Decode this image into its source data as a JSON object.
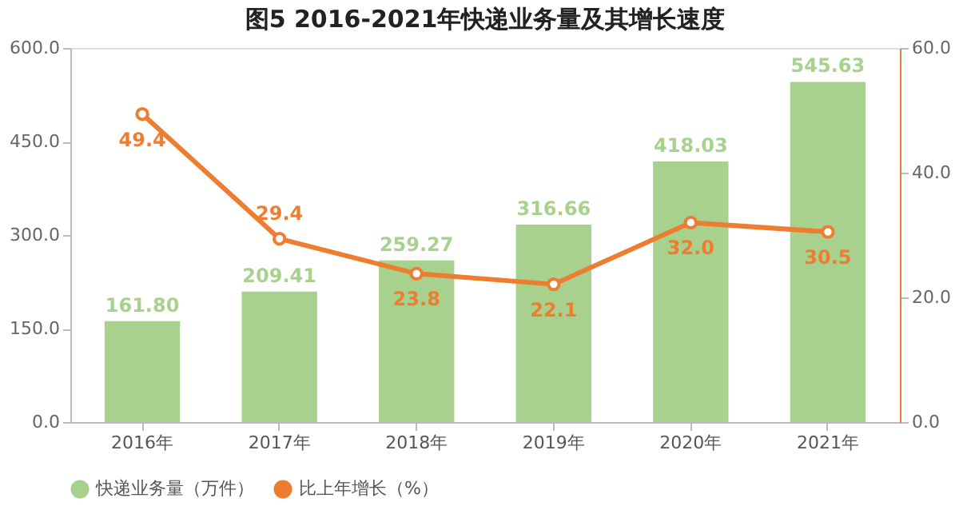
{
  "chart_data": {
    "type": "bar",
    "title": "图5 2016-2021年快递业务量及其增长速度",
    "categories": [
      "2016年",
      "2017年",
      "2018年",
      "2019年",
      "2020年",
      "2021年"
    ],
    "series": [
      {
        "name": "快递业务量（万件）",
        "color": "#a9d18e",
        "values": [
          161.8,
          209.41,
          259.27,
          316.66,
          418.03,
          545.63
        ],
        "value_labels": [
          "161.80",
          "209.41",
          "259.27",
          "316.66",
          "418.03",
          "545.63"
        ]
      },
      {
        "name": "比上年增长（%）",
        "type": "line",
        "axis": "y2",
        "color": "#ed7d31",
        "marker": "circle",
        "values": [
          49.4,
          29.4,
          23.8,
          22.1,
          32.0,
          30.5
        ],
        "value_labels": [
          "49.4",
          "29.4",
          "23.8",
          "22.1",
          "32.0",
          "30.5"
        ]
      }
    ],
    "ylim": [
      0,
      600
    ],
    "yticks": [
      {
        "value": 0,
        "label": "0.0"
      },
      {
        "value": 150,
        "label": "150.0"
      },
      {
        "value": 300,
        "label": "300.0"
      },
      {
        "value": 450,
        "label": "450.0"
      },
      {
        "value": 600,
        "label": "600.0"
      }
    ],
    "y2lim": [
      0,
      60
    ],
    "y2ticks": [
      {
        "value": 0,
        "label": "0.0"
      },
      {
        "value": 20,
        "label": "20.0"
      },
      {
        "value": 40,
        "label": "40.0"
      },
      {
        "value": 60,
        "label": "60.0"
      }
    ],
    "legend": "bottom"
  }
}
